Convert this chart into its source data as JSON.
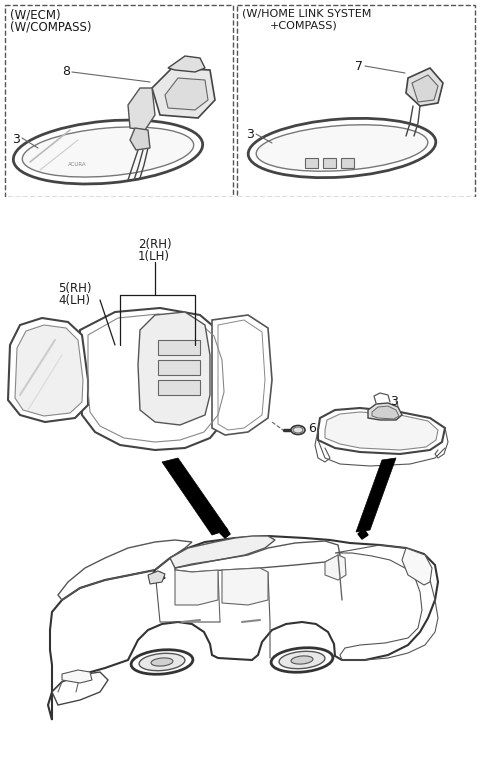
{
  "bg_color": "#ffffff",
  "line_color": "#1a1a1a",
  "gray_color": "#666666",
  "dpi": 100,
  "figw": 4.8,
  "figh": 7.61,
  "box1_texts": [
    "(W/ECM)",
    "(W/COMPASS)"
  ],
  "box2_texts": [
    "(W/HOME LINK SYSTEM",
    "+COMPASS)"
  ],
  "label_8": "8",
  "label_7": "7",
  "label_3": "3",
  "label_2rh": "2(RH)",
  "label_1lh": "1(LH)",
  "label_5rh": "5(RH)",
  "label_4lh": "4(LH)",
  "label_6": "6"
}
